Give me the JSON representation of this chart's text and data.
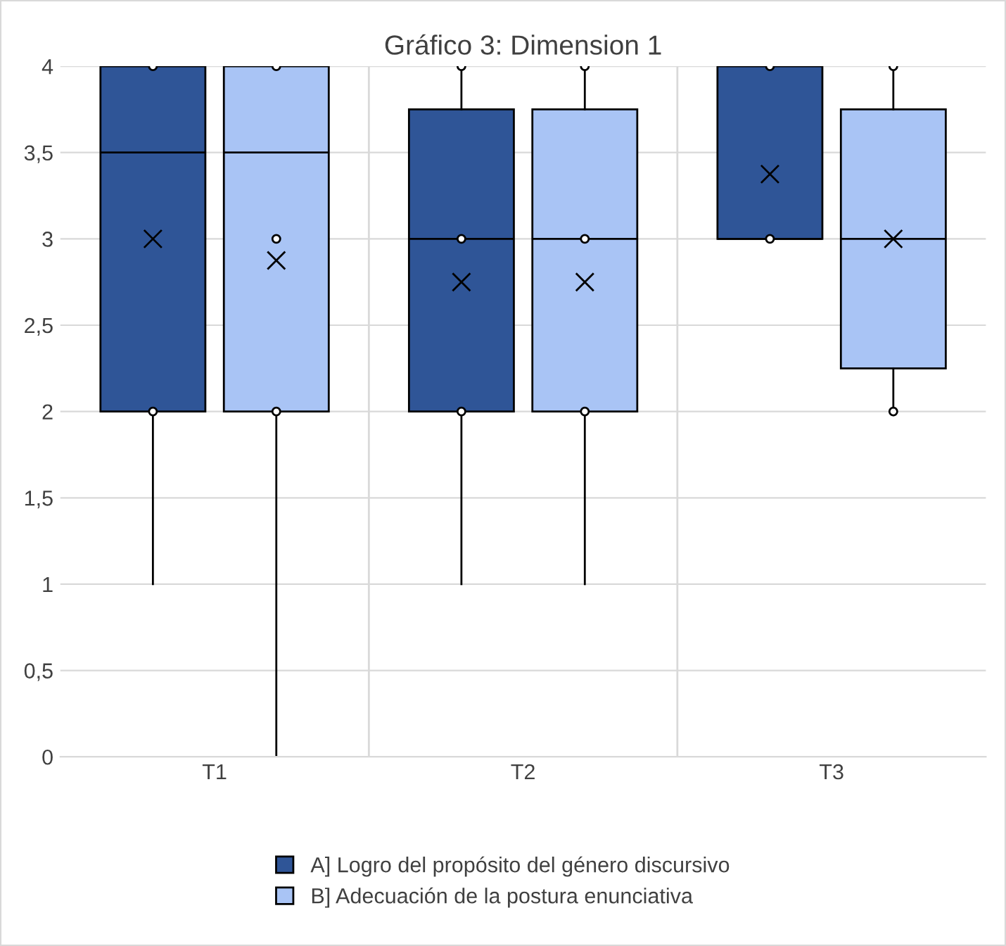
{
  "chart_data": {
    "type": "box",
    "title": "Gráfico 3: Dimension 1",
    "categories": [
      "T1",
      "T2",
      "T3"
    ],
    "series": [
      {
        "name": "A] Logro del propósito del género discursivo",
        "color": "#2f5597",
        "boxes": [
          {
            "low": 1,
            "q1": 2,
            "median": 3.5,
            "q3": 4,
            "high": 4,
            "mean": 3,
            "outliers": [
              4,
              2
            ]
          },
          {
            "low": 1,
            "q1": 2,
            "median": 3,
            "q3": 3.75,
            "high": 4,
            "mean": 2.75,
            "outliers": [
              4,
              3,
              2
            ]
          },
          {
            "low": 3,
            "q1": 3,
            "median": 3,
            "q3": 4,
            "high": 4,
            "mean": 3.375,
            "outliers": [
              4,
              3
            ]
          }
        ]
      },
      {
        "name": "B] Adecuación de la postura enunciativa",
        "color": "#a9c4f5",
        "boxes": [
          {
            "low": 0,
            "q1": 2,
            "median": 3.5,
            "q3": 4,
            "high": 4,
            "mean": 2.875,
            "outliers": [
              4,
              3,
              2
            ]
          },
          {
            "low": 1,
            "q1": 2,
            "median": 3,
            "q3": 3.75,
            "high": 4,
            "mean": 2.75,
            "outliers": [
              4,
              3,
              2
            ]
          },
          {
            "low": 2,
            "q1": 2.25,
            "median": 3,
            "q3": 3.75,
            "high": 4,
            "mean": 3,
            "outliers": [
              4,
              2
            ]
          }
        ]
      }
    ],
    "ylim": [
      0,
      4
    ],
    "yticks": [
      {
        "value": 0,
        "label": "0"
      },
      {
        "value": 0.5,
        "label": "0,5"
      },
      {
        "value": 1,
        "label": "1"
      },
      {
        "value": 1.5,
        "label": "1,5"
      },
      {
        "value": 2,
        "label": "2"
      },
      {
        "value": 2.5,
        "label": "2,5"
      },
      {
        "value": 3,
        "label": "3"
      },
      {
        "value": 3.5,
        "label": "3,5"
      },
      {
        "value": 4,
        "label": "4"
      }
    ],
    "grid": true,
    "legend": "bottom",
    "marker": "cross"
  }
}
